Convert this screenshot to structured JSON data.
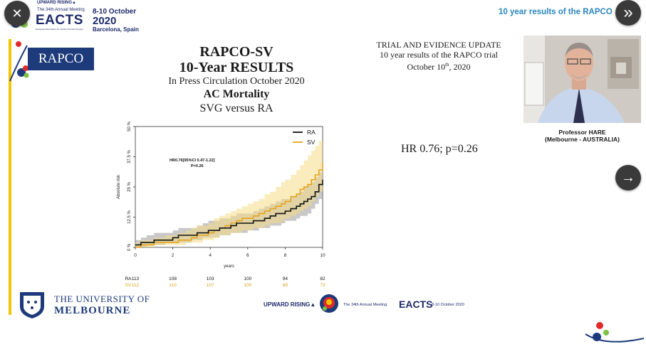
{
  "header": {
    "tagline": "UPWARD RISING▲",
    "meeting": "The 34th Annual Meeting",
    "society_name": "European Association for Cardio-Thoracic Surgery",
    "brand": "EACTS",
    "year": "2020",
    "dates": "8-10 October",
    "city": "Barcelona, Spain",
    "session_title": "10 year results of the RAPCO"
  },
  "controls": {
    "close_glyph": "✕",
    "expand_glyph": "»",
    "next_glyph": "→"
  },
  "slide": {
    "badge": "RAPCO",
    "title_line1": "RAPCO-SV",
    "title_line2": "10-Year RESULTS",
    "subtitle": "In Press Circulation October 2020",
    "endpoint": "AC Mortality",
    "comparison": "SVG versus RA",
    "update_line1": "TRIAL AND EVIDENCE UPDATE",
    "update_line2": "10 year results of the RAPCO trial",
    "update_line3_prefix": "October 10",
    "update_line3_sup": "th",
    "update_line3_suffix": ", 2020",
    "hr_result": "HR 0.76; p=0.26",
    "university_line1": "THE UNIVERSITY OF",
    "university_line2": "MELBOURNE"
  },
  "speaker": {
    "name": "Professor HARE",
    "location": "(Melbourne - AUSTRALIA)"
  },
  "footer": {
    "tagline": "UPWARD RISING▲",
    "meeting": "The 34th Annual Meeting",
    "brand": "EACTS",
    "dates": "8-10 October 2020"
  },
  "chart_data": {
    "type": "line",
    "ylabel": "Absolute risk",
    "xlabel": "years",
    "xlim": [
      0,
      10
    ],
    "ylim": [
      0,
      0.5
    ],
    "x_ticks": [
      "0",
      "2",
      "4",
      "6",
      "8",
      "10"
    ],
    "y_ticks": [
      "0 %",
      "12.5 %",
      "25 %",
      "37.5 %",
      "50 %"
    ],
    "annotation_line1": "HR0.76[95%CI 0.47-1.22]",
    "annotation_line2": "P=0.26",
    "legend_position": "top-right",
    "series": [
      {
        "name": "RA",
        "color": "#111111",
        "band_color": "#9a9a9a",
        "x": [
          0,
          0.3,
          0.6,
          1.0,
          1.6,
          2.0,
          2.3,
          2.7,
          3.0,
          3.3,
          3.6,
          3.9,
          4.2,
          4.5,
          4.8,
          5.1,
          5.4,
          5.7,
          6.0,
          6.3,
          6.6,
          6.9,
          7.2,
          7.5,
          7.8,
          8.0,
          8.3,
          8.6,
          8.8,
          9.0,
          9.2,
          9.4,
          9.6,
          9.8,
          10.0
        ],
        "y": [
          0.01,
          0.02,
          0.02,
          0.03,
          0.03,
          0.04,
          0.05,
          0.05,
          0.05,
          0.06,
          0.06,
          0.07,
          0.07,
          0.08,
          0.08,
          0.09,
          0.1,
          0.1,
          0.1,
          0.11,
          0.11,
          0.12,
          0.13,
          0.14,
          0.14,
          0.15,
          0.16,
          0.17,
          0.18,
          0.19,
          0.2,
          0.21,
          0.23,
          0.26,
          0.28
        ],
        "lower": [
          0.0,
          0.0,
          0.0,
          0.01,
          0.01,
          0.02,
          0.02,
          0.02,
          0.02,
          0.03,
          0.03,
          0.04,
          0.04,
          0.04,
          0.05,
          0.05,
          0.06,
          0.06,
          0.06,
          0.07,
          0.07,
          0.08,
          0.08,
          0.09,
          0.09,
          0.1,
          0.11,
          0.11,
          0.12,
          0.13,
          0.13,
          0.14,
          0.16,
          0.18,
          0.2
        ],
        "upper": [
          0.03,
          0.04,
          0.05,
          0.06,
          0.06,
          0.07,
          0.08,
          0.08,
          0.08,
          0.09,
          0.1,
          0.11,
          0.11,
          0.12,
          0.12,
          0.13,
          0.14,
          0.14,
          0.14,
          0.15,
          0.16,
          0.17,
          0.18,
          0.19,
          0.2,
          0.2,
          0.21,
          0.22,
          0.23,
          0.25,
          0.26,
          0.27,
          0.29,
          0.31,
          0.33
        ]
      },
      {
        "name": "SV",
        "color": "#e6a321",
        "band_color": "#f6dc86",
        "x": [
          0,
          0.3,
          0.6,
          1.0,
          1.6,
          2.0,
          2.3,
          2.7,
          3.0,
          3.3,
          3.6,
          3.9,
          4.2,
          4.5,
          4.8,
          5.1,
          5.4,
          5.7,
          6.0,
          6.3,
          6.6,
          6.9,
          7.2,
          7.5,
          7.8,
          8.0,
          8.3,
          8.6,
          8.8,
          9.0,
          9.2,
          9.4,
          9.6,
          9.8,
          10.0
        ],
        "y": [
          0.0,
          0.01,
          0.01,
          0.02,
          0.02,
          0.02,
          0.03,
          0.03,
          0.04,
          0.05,
          0.05,
          0.06,
          0.07,
          0.08,
          0.09,
          0.1,
          0.11,
          0.12,
          0.12,
          0.13,
          0.14,
          0.15,
          0.16,
          0.17,
          0.18,
          0.19,
          0.21,
          0.22,
          0.24,
          0.25,
          0.26,
          0.28,
          0.3,
          0.32,
          0.35
        ],
        "lower": [
          0.0,
          0.0,
          0.0,
          0.0,
          0.01,
          0.01,
          0.01,
          0.01,
          0.02,
          0.02,
          0.02,
          0.03,
          0.03,
          0.04,
          0.05,
          0.05,
          0.06,
          0.06,
          0.07,
          0.07,
          0.08,
          0.08,
          0.09,
          0.1,
          0.1,
          0.11,
          0.12,
          0.13,
          0.14,
          0.15,
          0.16,
          0.17,
          0.19,
          0.21,
          0.23
        ],
        "upper": [
          0.02,
          0.03,
          0.03,
          0.04,
          0.05,
          0.05,
          0.06,
          0.07,
          0.08,
          0.09,
          0.09,
          0.1,
          0.12,
          0.13,
          0.14,
          0.15,
          0.16,
          0.17,
          0.18,
          0.19,
          0.2,
          0.22,
          0.23,
          0.25,
          0.27,
          0.28,
          0.3,
          0.32,
          0.34,
          0.36,
          0.38,
          0.4,
          0.42,
          0.44,
          0.46
        ]
      }
    ],
    "risk_table": {
      "times": [
        0,
        2,
        4,
        6,
        8,
        10
      ],
      "rows": [
        {
          "label": "RA",
          "color": "#111111",
          "values": [
            "113",
            "108",
            "103",
            "100",
            "94",
            "82"
          ]
        },
        {
          "label": "SV",
          "color": "#d9a520",
          "values": [
            "112",
            "110",
            "107",
            "100",
            "88",
            "73"
          ]
        }
      ]
    }
  }
}
